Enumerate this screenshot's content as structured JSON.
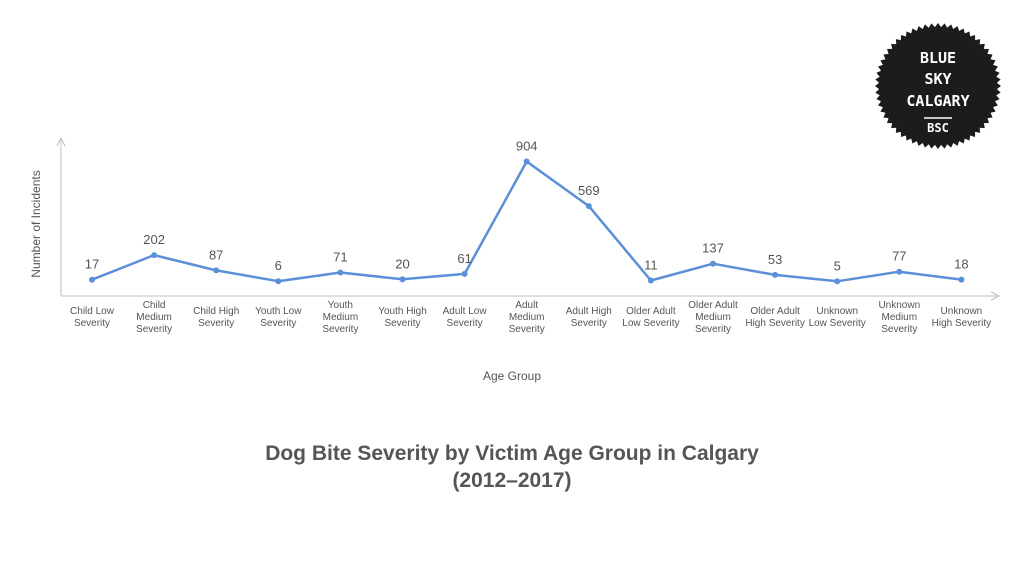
{
  "chart_data": {
    "type": "line",
    "title": "Dog Bite Severity by Victim Age Group in Calgary",
    "subtitle": "(2012–2017)",
    "xlabel": "Age Group",
    "ylabel": "Number of Incidents",
    "categories": [
      "Child Low Severity",
      "Child Medium Severity",
      "Child High Severity",
      "Youth Low Severity",
      "Youth Medium Severity",
      "Youth High Severity",
      "Adult Low Severity",
      "Adult Medium Severity",
      "Adult High Severity",
      "Older Adult Low Severity",
      "Older Adult Medium Severity",
      "Older Adult High Severity",
      "Unknown Low Severity",
      "Unknown Medium Severity",
      "Unknown High Severity"
    ],
    "tick_lines": [
      [
        "Child Low",
        "Severity"
      ],
      [
        "Child",
        "Medium",
        "Severity"
      ],
      [
        "Child High",
        "Severity"
      ],
      [
        "Youth Low",
        "Severity"
      ],
      [
        "Youth",
        "Medium",
        "Severity"
      ],
      [
        "Youth High",
        "Severity"
      ],
      [
        "Adult Low",
        "Severity"
      ],
      [
        "Adult",
        "Medium",
        "Severity"
      ],
      [
        "Adult High",
        "Severity"
      ],
      [
        "Older Adult",
        "Low Severity"
      ],
      [
        "Older Adult",
        "Medium",
        "Severity"
      ],
      [
        "Older Adult",
        "High Severity"
      ],
      [
        "Unknown",
        "Low Severity"
      ],
      [
        "Unknown",
        "Medium",
        "Severity"
      ],
      [
        "Unknown",
        "High Severity"
      ]
    ],
    "values": [
      17,
      202,
      87,
      6,
      71,
      20,
      61,
      904,
      569,
      11,
      137,
      53,
      5,
      77,
      18
    ],
    "ylim": [
      0,
      1200
    ],
    "grid": false,
    "legend": "none",
    "line_color": "#5b8fd8"
  },
  "logo": {
    "lines": [
      "BLUE",
      "SKY",
      "CALGARY"
    ],
    "abbr": "BSC"
  }
}
